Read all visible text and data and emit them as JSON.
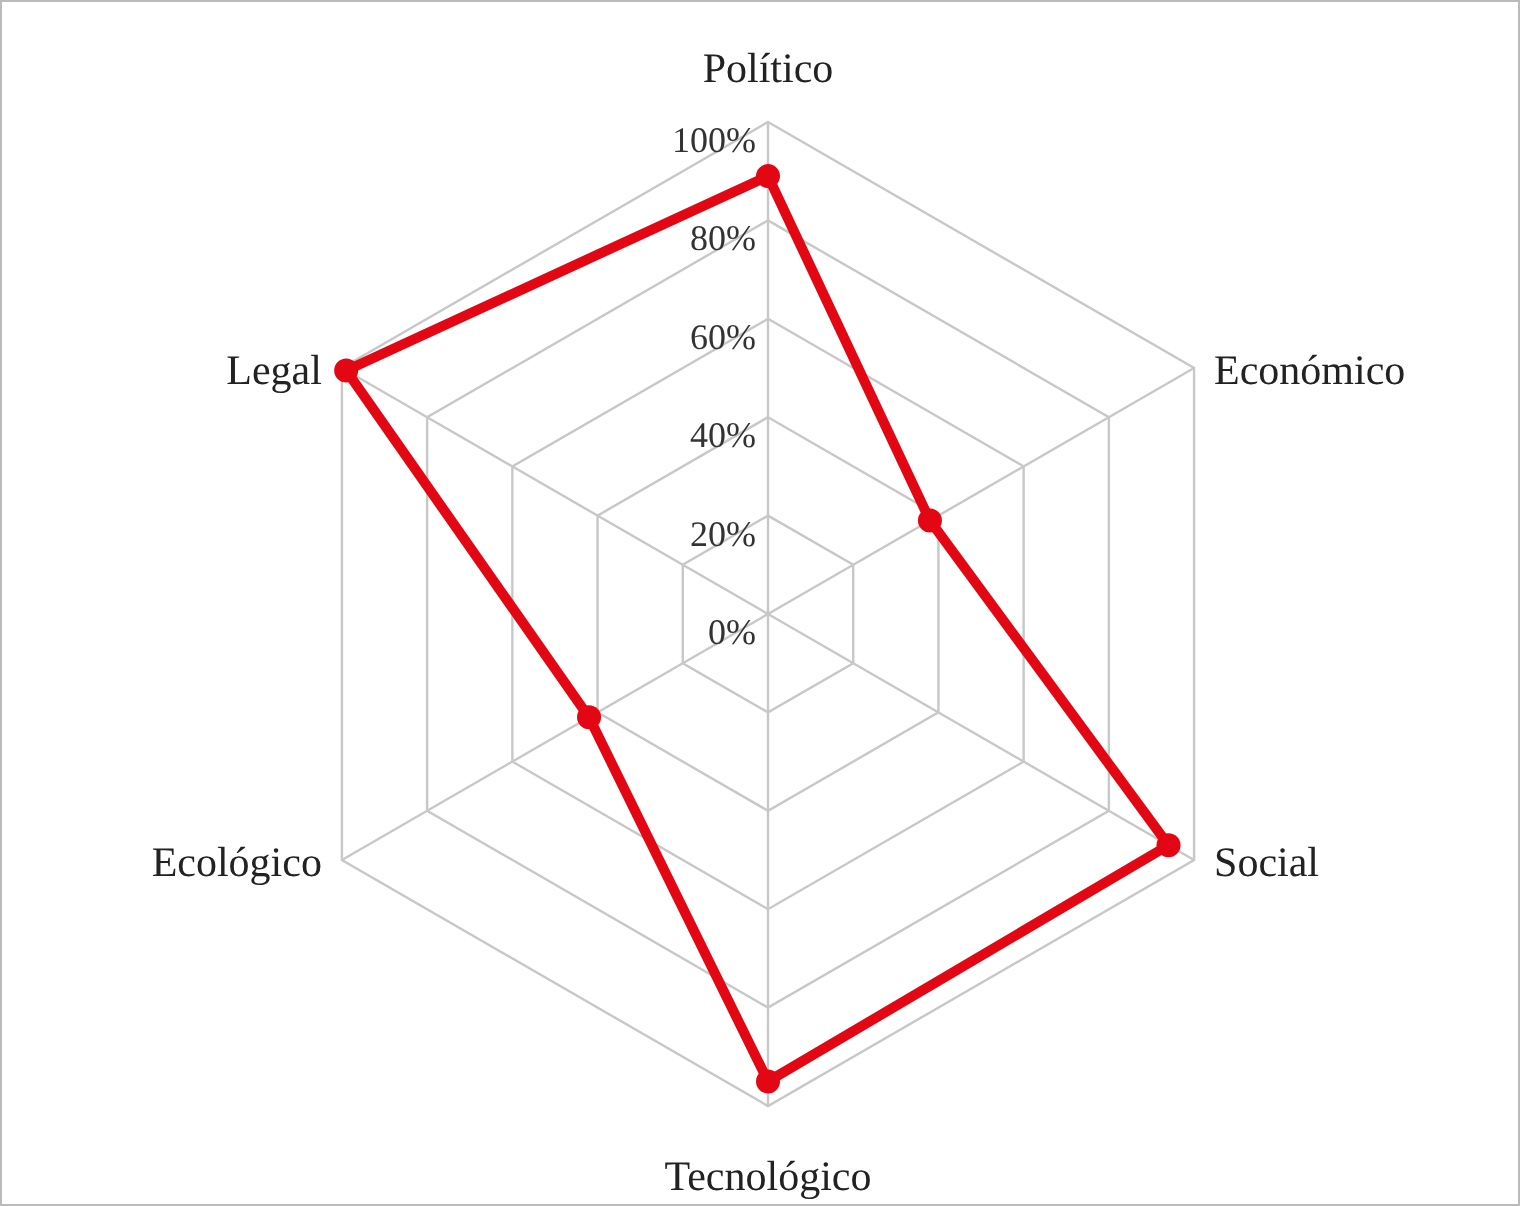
{
  "chart_data": {
    "type": "radar",
    "categories": [
      "Político",
      "Económico",
      "Social",
      "Tecnológico",
      "Ecológico",
      "Legal"
    ],
    "series": [
      {
        "color": "#e30613",
        "values": [
          89,
          38,
          94,
          95,
          42,
          99
        ]
      }
    ],
    "ylim": [
      0,
      100
    ],
    "yticks": [
      {
        "value": 0,
        "label": "0%"
      },
      {
        "value": 20,
        "label": "20%"
      },
      {
        "value": 40,
        "label": "40%"
      },
      {
        "value": 60,
        "label": "60%"
      },
      {
        "value": 80,
        "label": "80%"
      },
      {
        "value": 100,
        "label": "100%"
      }
    ],
    "grid": true,
    "marker": "circle"
  }
}
